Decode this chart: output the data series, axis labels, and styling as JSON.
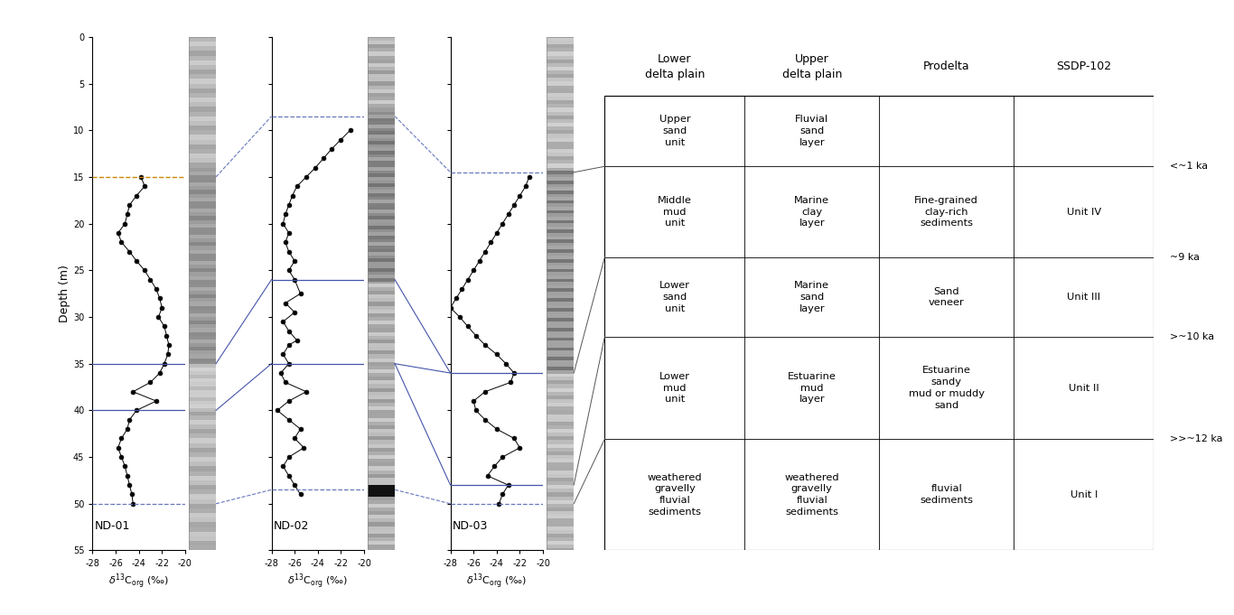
{
  "nd01_depth": [
    15.0,
    16.0,
    17.0,
    18.0,
    19.0,
    20.0,
    21.0,
    22.0,
    23.0,
    24.0,
    25.0,
    26.0,
    27.0,
    28.0,
    29.0,
    30.0,
    31.0,
    32.0,
    33.0,
    34.0,
    35.0,
    36.0,
    37.0,
    38.0,
    39.0,
    40.0,
    41.0,
    42.0,
    43.0,
    44.0,
    45.0,
    46.0,
    47.0,
    48.0,
    49.0,
    50.0
  ],
  "nd01_d13c": [
    -23.8,
    -23.5,
    -24.2,
    -24.8,
    -25.0,
    -25.2,
    -25.8,
    -25.5,
    -24.8,
    -24.2,
    -23.5,
    -23.0,
    -22.5,
    -22.2,
    -22.0,
    -22.3,
    -21.8,
    -21.6,
    -21.4,
    -21.5,
    -21.8,
    -22.2,
    -23.0,
    -24.5,
    -22.5,
    -24.2,
    -24.8,
    -25.0,
    -25.5,
    -25.8,
    -25.5,
    -25.2,
    -25.0,
    -24.8,
    -24.6,
    -24.5
  ],
  "nd02_depth": [
    10.0,
    11.0,
    12.0,
    13.0,
    14.0,
    15.0,
    16.0,
    17.0,
    18.0,
    19.0,
    20.0,
    21.0,
    22.0,
    23.0,
    24.0,
    25.0,
    26.0,
    27.5,
    28.5,
    29.5,
    30.5,
    31.5,
    32.5,
    33.0,
    34.0,
    35.0,
    36.0,
    37.0,
    38.0,
    39.0,
    40.0,
    41.0,
    42.0,
    43.0,
    44.0,
    45.0,
    46.0,
    47.0,
    48.0,
    49.0
  ],
  "nd02_d13c": [
    -21.2,
    -22.0,
    -22.8,
    -23.5,
    -24.2,
    -25.0,
    -25.8,
    -26.2,
    -26.5,
    -26.8,
    -27.0,
    -26.5,
    -26.8,
    -26.5,
    -26.0,
    -26.5,
    -26.0,
    -25.5,
    -26.8,
    -26.0,
    -27.0,
    -26.5,
    -25.8,
    -26.5,
    -27.0,
    -26.5,
    -27.2,
    -26.8,
    -25.0,
    -26.5,
    -27.5,
    -26.5,
    -25.5,
    -26.0,
    -25.2,
    -26.5,
    -27.0,
    -26.5,
    -26.0,
    -25.5
  ],
  "nd03_depth": [
    15.0,
    16.0,
    17.0,
    18.0,
    19.0,
    20.0,
    21.0,
    22.0,
    23.0,
    24.0,
    25.0,
    26.0,
    27.0,
    28.0,
    29.0,
    30.0,
    31.0,
    32.0,
    33.0,
    34.0,
    35.0,
    36.0,
    37.0,
    38.0,
    39.0,
    40.0,
    41.0,
    42.0,
    43.0,
    44.0,
    45.0,
    46.0,
    47.0,
    48.0,
    49.0,
    50.0
  ],
  "nd03_d13c": [
    -21.2,
    -21.5,
    -22.0,
    -22.5,
    -23.0,
    -23.5,
    -24.0,
    -24.5,
    -25.0,
    -25.5,
    -26.0,
    -26.5,
    -27.0,
    -27.5,
    -28.0,
    -27.2,
    -26.5,
    -25.8,
    -25.0,
    -24.0,
    -23.2,
    -22.5,
    -22.8,
    -25.0,
    -26.0,
    -25.8,
    -25.0,
    -24.0,
    -22.5,
    -22.0,
    -23.5,
    -24.2,
    -24.8,
    -23.0,
    -23.5,
    -23.8
  ],
  "depth_min": 0,
  "depth_max": 55,
  "d13c_min": -28,
  "d13c_max": -20,
  "nd01_solid_boundaries": [
    35.0,
    40.0
  ],
  "nd01_dashed_boundaries": [
    15.0,
    50.0
  ],
  "nd02_solid_boundaries": [
    26.0,
    35.0
  ],
  "nd02_dashed_boundaries": [
    8.5,
    48.5
  ],
  "nd03_solid_boundaries": [
    36.0,
    48.0
  ],
  "nd03_dashed_boundaries": [
    14.5,
    50.0
  ],
  "table_col_headers": [
    "Lower\ndelta plain",
    "Upper\ndelta plain",
    "Prodelta",
    "SSDP-102"
  ],
  "table_rows": [
    [
      "Upper\nsand\nunit",
      "Fluvial\nsand\nlayer",
      "",
      ""
    ],
    [
      "Middle\nmud\nunit",
      "Marine\nclay\nlayer",
      "Fine-grained\nclay-rich\nsediments",
      "Unit IV"
    ],
    [
      "Lower\nsand\nunit",
      "Marine\nsand\nlayer",
      "Sand\nveneer",
      "Unit III"
    ],
    [
      "Lower\nmud\nunit",
      "Estuarine\nmud\nlayer",
      "Estuarine\nsandy\nmud or muddy\nsand",
      "Unit II"
    ],
    [
      "weathered\ngravelly\nfluvial\nsediments",
      "weathered\ngravelly\nfluvial\nsediments",
      "fluvial\nsediments",
      "Unit I"
    ]
  ],
  "age_labels": [
    "<~1 ka",
    "~9 ka",
    ">~10 ka",
    ">>~12 ka"
  ],
  "blue_color": "#4455aa",
  "blue_dashed_color": "#6677bb",
  "orange_color": "#cc8800"
}
